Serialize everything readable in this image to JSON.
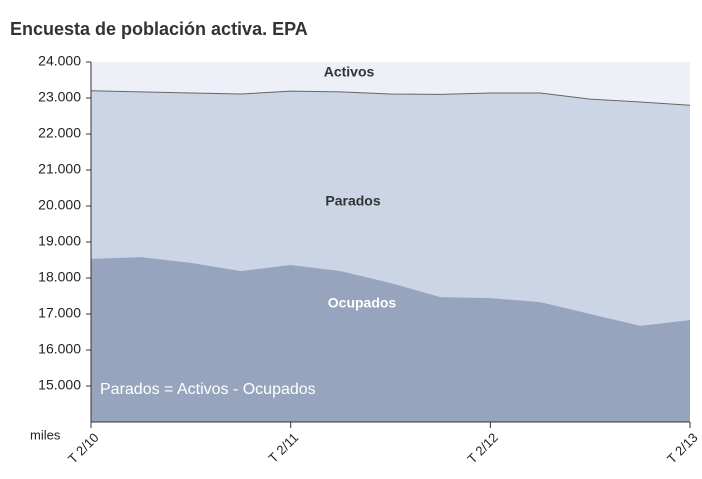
{
  "chart_data": {
    "type": "area",
    "title": "Encuesta de población activa. EPA",
    "y_label": "miles",
    "categories": [
      "T 2/10",
      null,
      null,
      null,
      "T 2/11",
      null,
      null,
      null,
      "T 2/12",
      null,
      null,
      null,
      "T 2/13"
    ],
    "series": [
      {
        "name": "Activos",
        "color": "#ccd5e6",
        "values": [
          23200,
          23170,
          23140,
          23110,
          23190,
          23170,
          23110,
          23100,
          23140,
          23140,
          22970,
          22890,
          22800
        ]
      },
      {
        "name": "Ocupados",
        "color": "#97a4bd",
        "values": [
          18530,
          18580,
          18420,
          18190,
          18360,
          18190,
          17860,
          17470,
          17440,
          17330,
          17000,
          16670,
          16830
        ]
      }
    ],
    "annotations": [
      "Parados",
      "Parados = Activos - Ocupados"
    ],
    "ylim": [
      14000,
      24000
    ],
    "yticks": [
      {
        "value": 15000,
        "label": "15.000"
      },
      {
        "value": 16000,
        "label": "16.000"
      },
      {
        "value": 17000,
        "label": "17.000"
      },
      {
        "value": 18000,
        "label": "18.000"
      },
      {
        "value": 19000,
        "label": "19.000"
      },
      {
        "value": 20000,
        "label": "20.000"
      },
      {
        "value": 21000,
        "label": "21.000"
      },
      {
        "value": 22000,
        "label": "22.000"
      },
      {
        "value": 23000,
        "label": "23.000"
      },
      {
        "value": 24000,
        "label": "24.000"
      }
    ],
    "grid": false
  }
}
